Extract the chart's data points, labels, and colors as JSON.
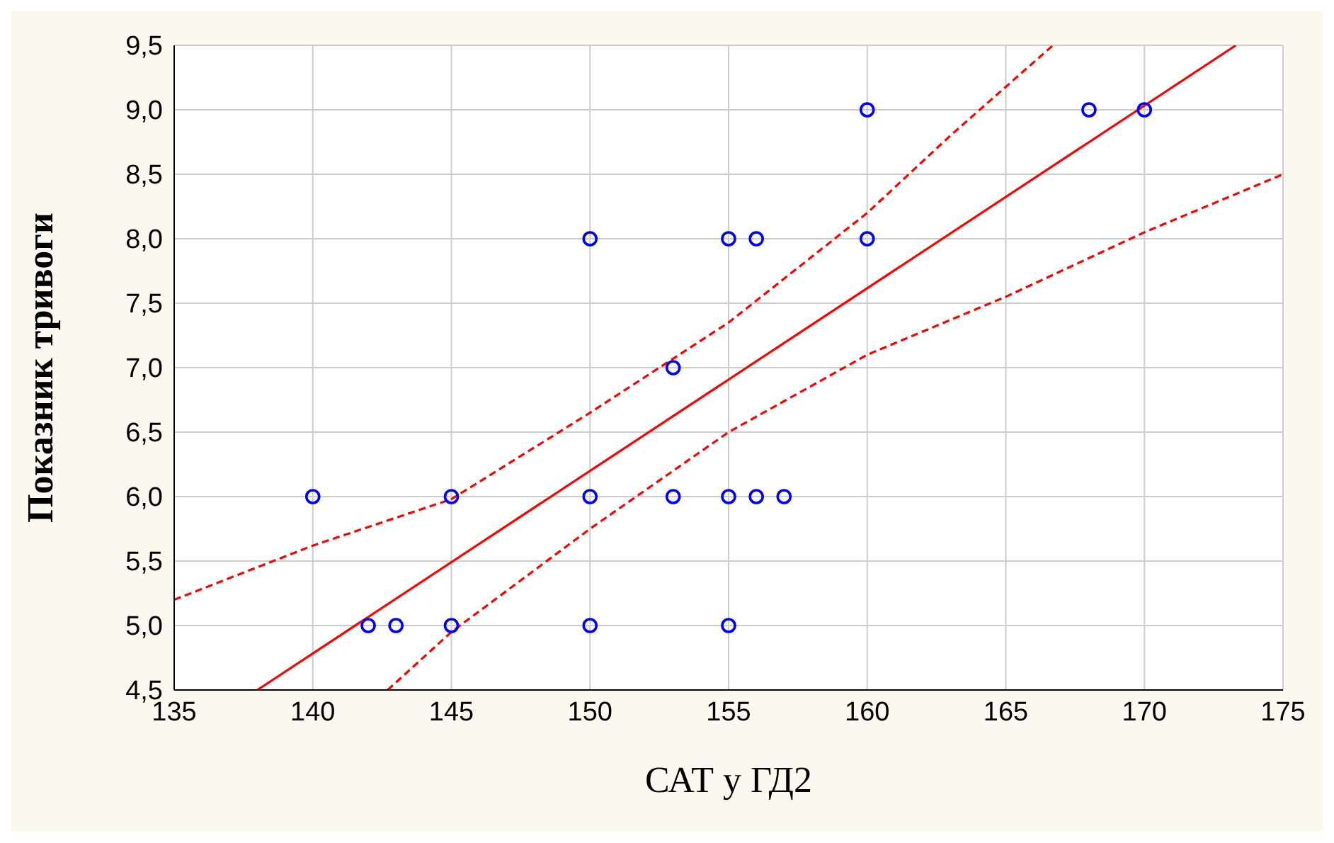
{
  "chart_data": {
    "type": "scatter",
    "xlabel": "САТ у ГД2",
    "ylabel": "Показник тривоги",
    "xlim": [
      135,
      175
    ],
    "xticks": [
      135,
      140,
      145,
      150,
      155,
      160,
      165,
      170,
      175
    ],
    "ylim": [
      4.5,
      9.5
    ],
    "yticks": [
      {
        "value": 4.5,
        "label": "4,5"
      },
      {
        "value": 5,
        "label": "5,0"
      },
      {
        "value": 5.5,
        "label": "5,5"
      },
      {
        "value": 6,
        "label": "6,0"
      },
      {
        "value": 6.5,
        "label": "6,5"
      },
      {
        "value": 7,
        "label": "7,0"
      },
      {
        "value": 7.5,
        "label": "7,5"
      },
      {
        "value": 8,
        "label": "8,0"
      },
      {
        "value": 8.5,
        "label": "8,5"
      },
      {
        "value": 9,
        "label": "9,0"
      },
      {
        "value": 9.5,
        "label": "9,5"
      }
    ],
    "grid": true,
    "marker": "circle",
    "series": [
      {
        "color": "#0000ff",
        "x": [
          140,
          142,
          143,
          145,
          145,
          150,
          150,
          150,
          153,
          153,
          155,
          155,
          155,
          156,
          156,
          157,
          160,
          160,
          168,
          170
        ],
        "values": [
          6,
          5,
          5,
          6,
          5,
          8,
          6,
          5,
          7,
          6,
          8,
          6,
          5,
          8,
          6,
          6,
          9,
          8,
          9,
          9
        ]
      },
      {
        "type": "line",
        "color": "#ff0000",
        "line_style": "solid",
        "marker": "none",
        "x": [
          138,
          173.3
        ],
        "values": [
          4.5,
          9.5
        ]
      },
      {
        "type": "line",
        "color": "#ff0000",
        "line_style": "dashed",
        "marker": "none",
        "x": [
          135,
          140,
          145,
          150,
          155,
          160,
          163,
          166.7
        ],
        "values": [
          5.2,
          5.62,
          5.98,
          6.65,
          7.35,
          8.2,
          8.8,
          9.5
        ]
      },
      {
        "type": "line",
        "color": "#ff0000",
        "line_style": "dashed",
        "marker": "none",
        "x": [
          142.7,
          145,
          150,
          155,
          160,
          165,
          170,
          175
        ],
        "values": [
          4.5,
          4.95,
          5.75,
          6.5,
          7.1,
          7.55,
          8.05,
          8.5
        ]
      }
    ]
  }
}
